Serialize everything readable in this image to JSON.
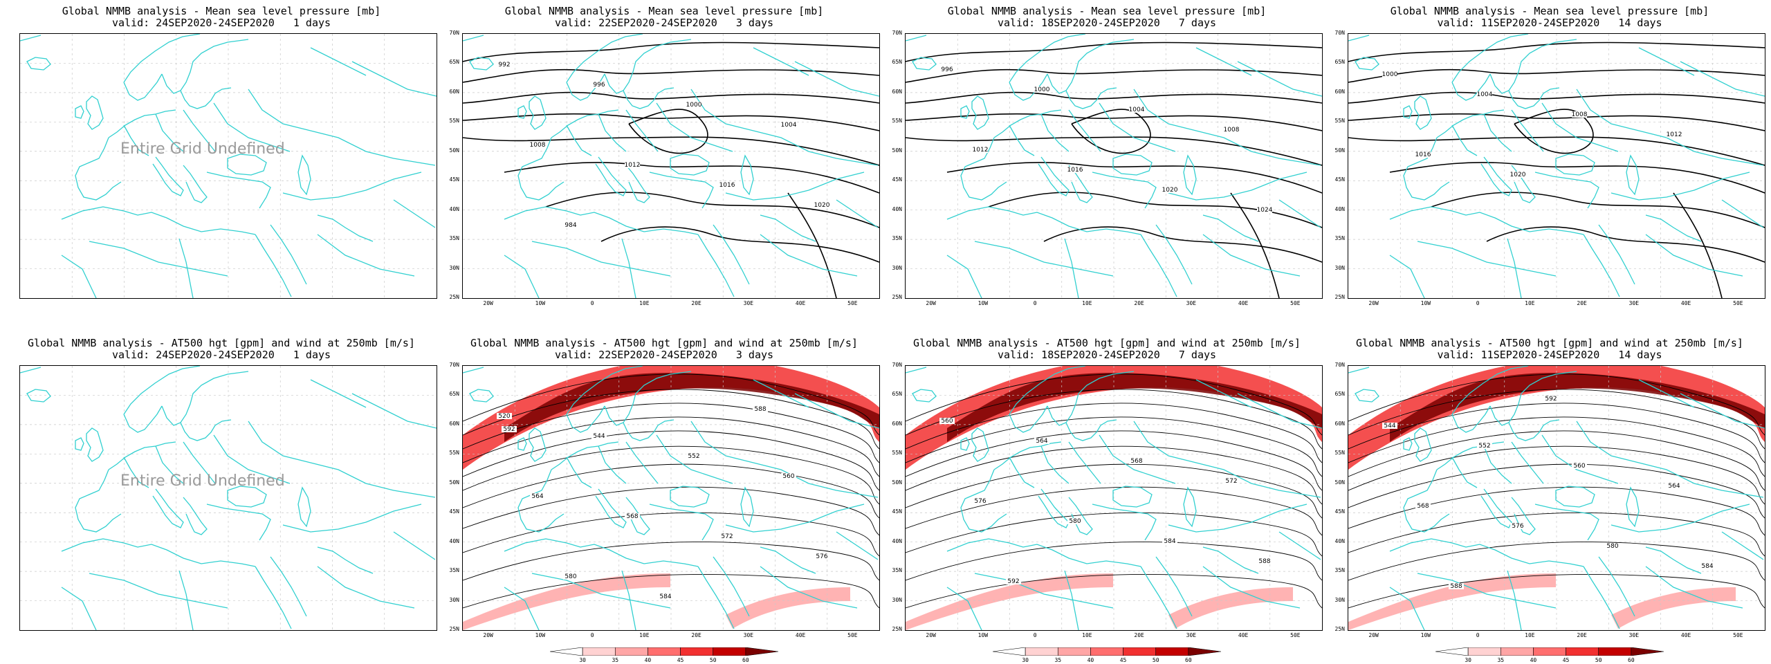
{
  "colors": {
    "coast": "#31d0d0",
    "contour": "#000000",
    "grid": "#c8c8c8",
    "jet": [
      "#ffd2d2",
      "#ffa6a6",
      "#ff6e6e",
      "#f23030",
      "#c40000",
      "#7a0000"
    ]
  },
  "panels": [
    {
      "title": "Global NMMB analysis - Mean sea level pressure [mb]",
      "valid": "valid: 24SEP2020-24SEP2020   1 days",
      "kind": "undefined",
      "undefined_text": "Entire Grid Undefined"
    },
    {
      "title": "Global NMMB analysis - Mean sea level pressure [mb]",
      "valid": "valid: 22SEP2020-24SEP2020   3 days",
      "kind": "mslp",
      "contour_labels": [
        "992",
        "996",
        "1000",
        "1004",
        "1008",
        "1012",
        "1016",
        "1020",
        "984"
      ]
    },
    {
      "title": "Global NMMB analysis - Mean sea level pressure [mb]",
      "valid": "valid: 18SEP2020-24SEP2020   7 days",
      "kind": "mslp",
      "contour_labels": [
        "996",
        "1000",
        "1004",
        "1008",
        "1012",
        "1016",
        "1020",
        "1024"
      ]
    },
    {
      "title": "Global NMMB analysis - Mean sea level pressure [mb]",
      "valid": "valid: 11SEP2020-24SEP2020   14 days",
      "kind": "mslp",
      "contour_labels": [
        "1000",
        "1004",
        "1008",
        "1012",
        "1016",
        "1020"
      ]
    },
    {
      "title": "Global NMMB analysis - AT500 hgt [gpm] and wind at 250mb [m/s]",
      "valid": "valid: 24SEP2020-24SEP2020   1 days",
      "kind": "undefined",
      "undefined_text": "Entire Grid Undefined"
    },
    {
      "title": "Global NMMB analysis - AT500 hgt [gpm] and wind at 250mb [m/s]",
      "valid": "valid: 22SEP2020-24SEP2020   3 days",
      "kind": "hgt",
      "contour_labels": [
        "520",
        "544",
        "552",
        "560",
        "564",
        "568",
        "572",
        "576",
        "580",
        "584",
        "588",
        "592"
      ],
      "colorbar": [
        "30",
        "35",
        "40",
        "45",
        "50",
        "60"
      ]
    },
    {
      "title": "Global NMMB analysis - AT500 hgt [gpm] and wind at 250mb [m/s]",
      "valid": "valid: 18SEP2020-24SEP2020   7 days",
      "kind": "hgt",
      "contour_labels": [
        "560",
        "564",
        "568",
        "572",
        "576",
        "580",
        "584",
        "588",
        "592"
      ],
      "colorbar": [
        "30",
        "35",
        "40",
        "45",
        "50",
        "60"
      ]
    },
    {
      "title": "Global NMMB analysis - AT500 hgt [gpm] and wind at 250mb [m/s]",
      "valid": "valid: 11SEP2020-24SEP2020   14 days",
      "kind": "hgt",
      "contour_labels": [
        "544",
        "552",
        "560",
        "564",
        "568",
        "576",
        "580",
        "584",
        "588",
        "592"
      ],
      "colorbar": [
        "30",
        "35",
        "40",
        "45",
        "50",
        "60"
      ]
    }
  ],
  "lat_labels": [
    "70N",
    "65N",
    "60N",
    "55N",
    "50N",
    "45N",
    "40N",
    "35N",
    "30N",
    "25N"
  ],
  "lon_labels": [
    "20W",
    "10W",
    "0",
    "10E",
    "20E",
    "30E",
    "40E",
    "50E"
  ]
}
